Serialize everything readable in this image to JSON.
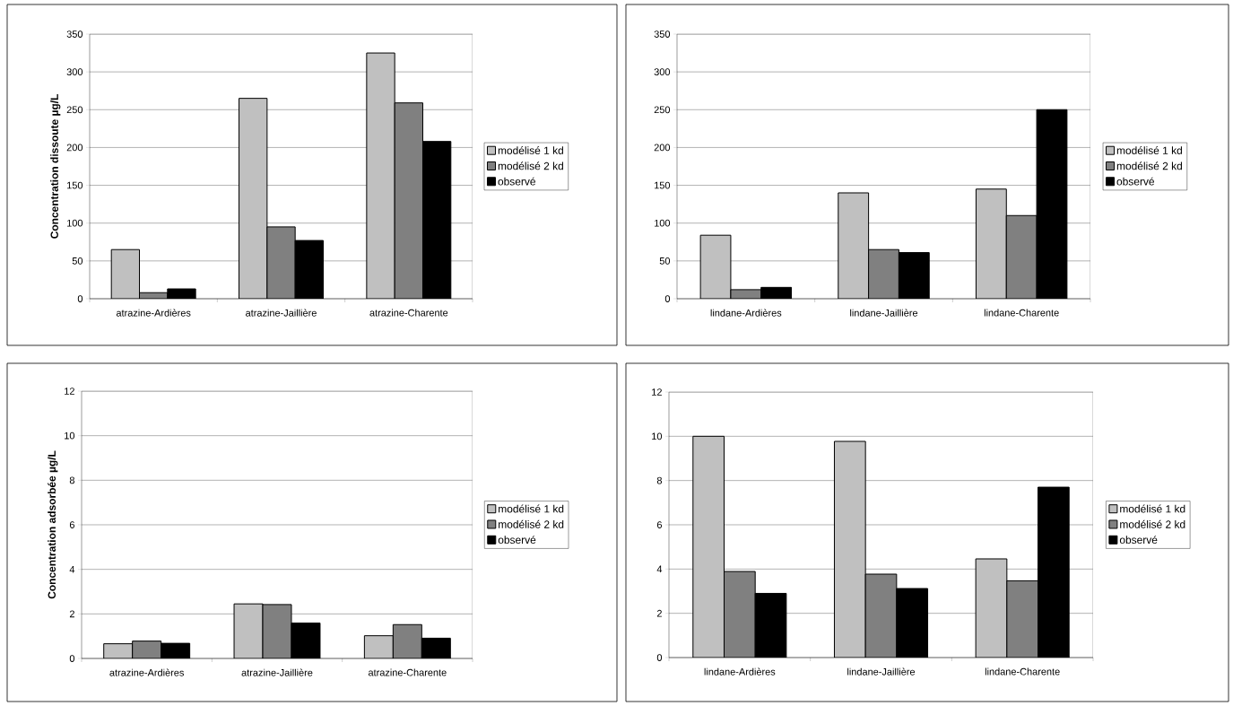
{
  "chart_data": [
    {
      "type": "bar",
      "ylabel": "Concentration dissoute µg/L",
      "categories": [
        "atrazine-Ardières",
        "atrazine-Jaillière",
        "atrazine-Charente"
      ],
      "series": [
        {
          "name": "modélisé 1 kd",
          "color": "#c0c0c0",
          "values": [
            65,
            265,
            325
          ]
        },
        {
          "name": "modélisé 2 kd",
          "color": "#808080",
          "values": [
            8,
            95,
            259
          ]
        },
        {
          "name": "observé",
          "color": "#000000",
          "values": [
            13,
            77,
            208
          ]
        }
      ],
      "ylim": [
        0,
        350
      ],
      "yticks": [
        0,
        50,
        100,
        150,
        200,
        250,
        300,
        350
      ],
      "grid": "y",
      "legend": "right"
    },
    {
      "type": "bar",
      "categories": [
        "lindane-Ardières",
        "lindane-Jaillière",
        "lindane-Charente"
      ],
      "series": [
        {
          "name": "modélisé 1 kd",
          "color": "#c0c0c0",
          "values": [
            84,
            140,
            145
          ]
        },
        {
          "name": "modélisé 2 kd",
          "color": "#808080",
          "values": [
            12,
            65,
            110
          ]
        },
        {
          "name": "observé",
          "color": "#000000",
          "values": [
            15,
            61,
            250
          ]
        }
      ],
      "ylim": [
        0,
        350
      ],
      "yticks": [
        0,
        50,
        100,
        150,
        200,
        250,
        300,
        350
      ],
      "grid": "y",
      "legend": "right"
    },
    {
      "type": "bar",
      "ylabel": "Concentration adsorbée µg/L",
      "categories": [
        "atrazine-Ardières",
        "atrazine-Jaillière",
        "atrazine-Charente"
      ],
      "series": [
        {
          "name": "modélisé 1 kd",
          "color": "#c0c0c0",
          "values": [
            0.66,
            2.45,
            1.02
          ]
        },
        {
          "name": "modélisé 2 kd",
          "color": "#808080",
          "values": [
            0.78,
            2.42,
            1.52
          ]
        },
        {
          "name": "observé",
          "color": "#000000",
          "values": [
            0.68,
            1.59,
            0.91
          ]
        }
      ],
      "ylim": [
        0,
        12
      ],
      "yticks": [
        0,
        2,
        4,
        6,
        8,
        10,
        12
      ],
      "grid": "y",
      "legend": "right"
    },
    {
      "type": "bar",
      "categories": [
        "lindane-Ardières",
        "lindane-Jaillière",
        "lindane-Charente"
      ],
      "series": [
        {
          "name": "modélisé 1 kd",
          "color": "#c0c0c0",
          "values": [
            10.0,
            9.77,
            4.46
          ]
        },
        {
          "name": "modélisé 2 kd",
          "color": "#808080",
          "values": [
            3.89,
            3.77,
            3.47
          ]
        },
        {
          "name": "observé",
          "color": "#000000",
          "values": [
            2.9,
            3.12,
            7.7
          ]
        }
      ],
      "ylim": [
        0,
        12
      ],
      "yticks": [
        0,
        2,
        4,
        6,
        8,
        10,
        12
      ],
      "grid": "y",
      "legend": "right"
    }
  ]
}
